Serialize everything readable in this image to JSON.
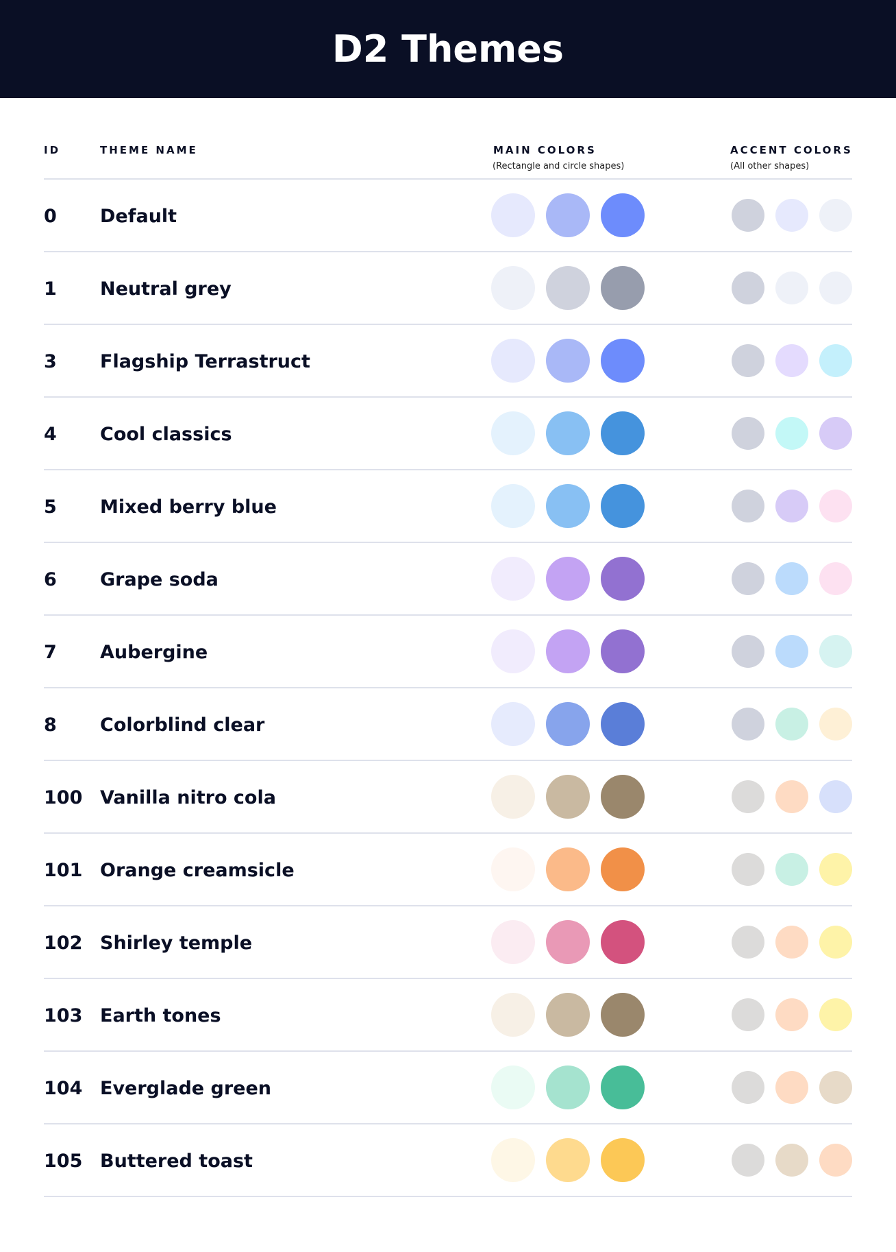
{
  "title": "D2 Themes",
  "columns": {
    "id": "ID",
    "name": "THEME NAME",
    "main": "MAIN COLORS",
    "main_sub": "(Rectangle and circle shapes)",
    "accent": "ACCENT COLORS",
    "accent_sub": "(All other shapes)"
  },
  "themes": [
    {
      "id": "0",
      "name": "Default",
      "main": [
        "#E6E9FD",
        "#A9B8F7",
        "#6D8CFC"
      ],
      "accent": [
        "#CFD2DD",
        "#E6E9FD",
        "#EEF1F8"
      ]
    },
    {
      "id": "1",
      "name": "Neutral grey",
      "main": [
        "#EEF1F8",
        "#CFD2DD",
        "#979DAD"
      ],
      "accent": [
        "#CFD2DD",
        "#EEF1F8",
        "#EEF1F8"
      ]
    },
    {
      "id": "3",
      "name": "Flagship Terrastruct",
      "main": [
        "#E6E9FD",
        "#A9B8F7",
        "#6D8CFC"
      ],
      "accent": [
        "#CFD2DD",
        "#E4DBFE",
        "#C4F0FC"
      ]
    },
    {
      "id": "4",
      "name": "Cool classics",
      "main": [
        "#E4F2FD",
        "#88C0F3",
        "#4593DD"
      ],
      "accent": [
        "#CFD2DD",
        "#C3F8F7",
        "#D7CBF7"
      ]
    },
    {
      "id": "5",
      "name": "Mixed berry blue",
      "main": [
        "#E4F2FD",
        "#88C0F3",
        "#4593DD"
      ],
      "accent": [
        "#CFD2DD",
        "#D7CBF7",
        "#FDE1F1"
      ]
    },
    {
      "id": "6",
      "name": "Grape soda",
      "main": [
        "#F1ECFD",
        "#C3A3F3",
        "#9271D1"
      ],
      "accent": [
        "#CFD2DD",
        "#BBDBFC",
        "#FDE1F1"
      ]
    },
    {
      "id": "7",
      "name": "Aubergine",
      "main": [
        "#F1ECFD",
        "#C3A3F3",
        "#9271D1"
      ],
      "accent": [
        "#CFD2DD",
        "#BBDBFC",
        "#D6F3F1"
      ]
    },
    {
      "id": "8",
      "name": "Colorblind clear",
      "main": [
        "#E6EBFD",
        "#87A4EC",
        "#5A7ED8"
      ],
      "accent": [
        "#CFD2DD",
        "#C8F0E4",
        "#FEF0D6"
      ]
    },
    {
      "id": "100",
      "name": "Vanilla nitro cola",
      "main": [
        "#F7F0E6",
        "#C9B9A1",
        "#9A876C"
      ],
      "accent": [
        "#DCDBDA",
        "#FEDBC3",
        "#D7E0FB"
      ]
    },
    {
      "id": "101",
      "name": "Orange creamsicle",
      "main": [
        "#FEF6F1",
        "#FBBA89",
        "#F19048"
      ],
      "accent": [
        "#DCDBDA",
        "#C8F0E4",
        "#FEF3A8"
      ]
    },
    {
      "id": "102",
      "name": "Shirley temple",
      "main": [
        "#FBECF2",
        "#E999B6",
        "#D3527E"
      ],
      "accent": [
        "#DCDBDA",
        "#FEDBC3",
        "#FEF3A8"
      ]
    },
    {
      "id": "103",
      "name": "Earth tones",
      "main": [
        "#F7F0E6",
        "#C9B9A1",
        "#9A876C"
      ],
      "accent": [
        "#DCDBDA",
        "#FEDBC3",
        "#FEF3A8"
      ]
    },
    {
      "id": "104",
      "name": "Everglade green",
      "main": [
        "#EAFBF4",
        "#A5E3CF",
        "#48BD98"
      ],
      "accent": [
        "#DCDBDA",
        "#FEDBC3",
        "#E7DAC8"
      ]
    },
    {
      "id": "105",
      "name": "Buttered toast",
      "main": [
        "#FEF7E6",
        "#FEDA8E",
        "#FCC856"
      ],
      "accent": [
        "#DCDBDA",
        "#E7DAC8",
        "#FEDBC3"
      ]
    }
  ]
}
